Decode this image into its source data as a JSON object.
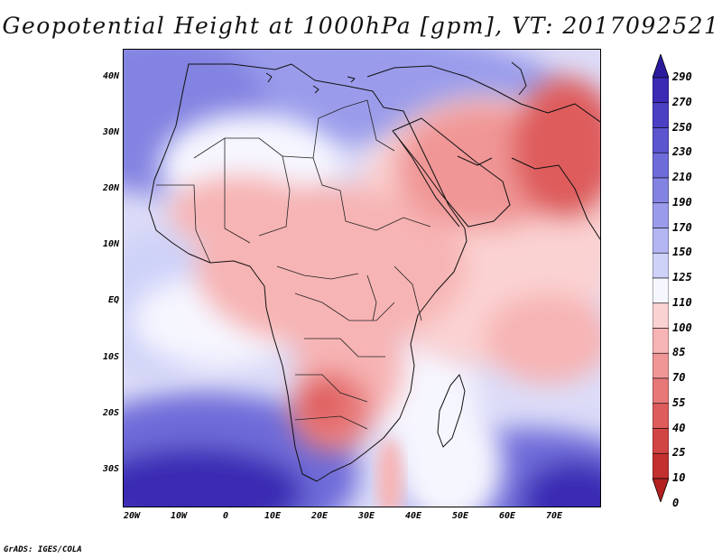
{
  "title": "Geopotential Height at 1000hPa [gpm], VT: 2017092521",
  "credit": "GrADS: IGES/COLA",
  "map": {
    "lat_labels": [
      "40N",
      "30N",
      "20N",
      "10N",
      "EQ",
      "10S",
      "20S",
      "30S"
    ],
    "lon_labels": [
      "20W",
      "10W",
      "0",
      "10E",
      "20E",
      "30E",
      "40E",
      "50E",
      "60E",
      "70E"
    ],
    "extent": {
      "lon_min": -22,
      "lon_max": 80,
      "lat_min": -37,
      "lat_max": 45
    }
  },
  "colorbar": {
    "levels": [
      "290",
      "270",
      "250",
      "230",
      "210",
      "190",
      "170",
      "150",
      "125",
      "110",
      "100",
      "85",
      "70",
      "55",
      "40",
      "25",
      "10",
      "0"
    ],
    "colors": [
      "#2a1a9e",
      "#3a2ab4",
      "#4b3fc4",
      "#5c55d0",
      "#6e6cd9",
      "#8383e2",
      "#9a9ceb",
      "#b3b6f2",
      "#cfd2f8",
      "#f6f6ff",
      "#fbd2d2",
      "#f7b4b4",
      "#f09696",
      "#e87878",
      "#de5c5c",
      "#d24545",
      "#c43030",
      "#b32020"
    ]
  }
}
